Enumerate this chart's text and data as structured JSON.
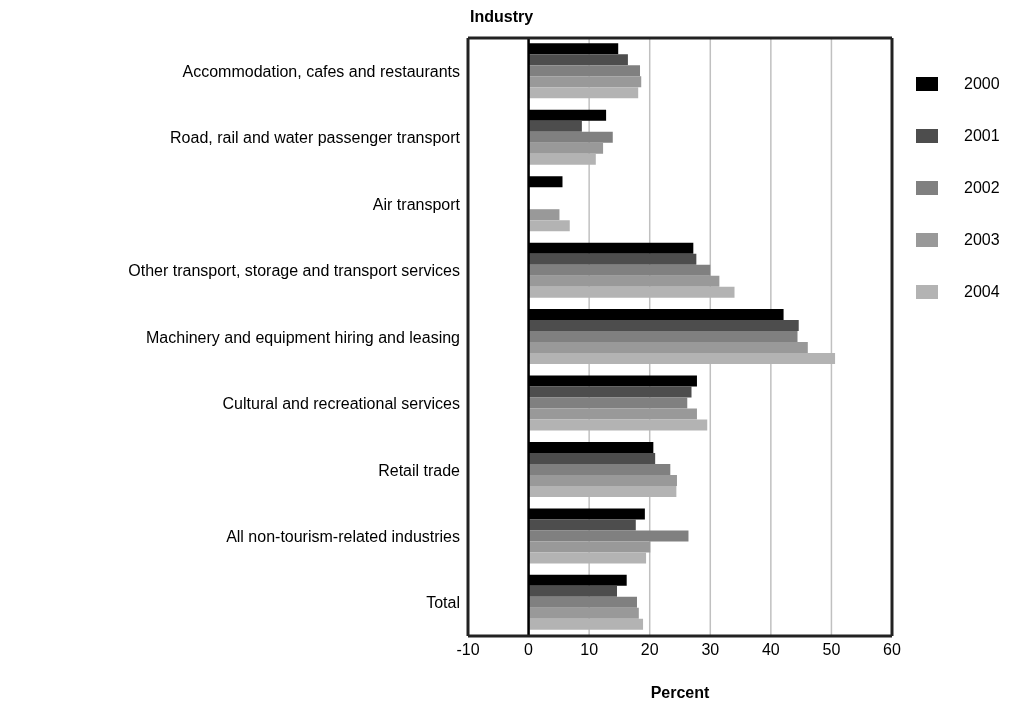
{
  "chart_data": {
    "type": "bar",
    "orientation": "horizontal",
    "title": "Industry",
    "xlabel": "Percent",
    "categories": [
      "Accommodation, cafes and restaurants",
      "Road, rail and water passenger transport",
      "Air transport",
      "Other transport, storage and transport services",
      "Machinery and equipment hiring and leasing",
      "Cultural and recreational services",
      "Retail trade",
      "All non-tourism-related industries",
      "Total"
    ],
    "series": [
      {
        "name": "2000",
        "color": "#000000",
        "values": [
          14.8,
          12.8,
          5.6,
          27.2,
          42.1,
          27.8,
          20.6,
          19.2,
          16.2
        ]
      },
      {
        "name": "2001",
        "color": "#4d4d4d",
        "values": [
          16.4,
          8.8,
          null,
          27.7,
          44.6,
          26.9,
          20.9,
          17.7,
          14.6
        ]
      },
      {
        "name": "2002",
        "color": "#808080",
        "values": [
          18.4,
          13.9,
          null,
          30.0,
          44.4,
          26.2,
          23.4,
          26.4,
          17.9
        ]
      },
      {
        "name": "2003",
        "color": "#999999",
        "values": [
          18.6,
          12.3,
          5.1,
          31.5,
          46.1,
          27.8,
          24.5,
          20.1,
          18.2
        ]
      },
      {
        "name": "2004",
        "color": "#b3b3b3",
        "values": [
          18.1,
          11.1,
          6.8,
          34.0,
          50.6,
          29.5,
          24.4,
          19.4,
          18.9
        ]
      }
    ],
    "xlim": [
      -10,
      60
    ],
    "xticks": [
      -10,
      0,
      10,
      20,
      30,
      40,
      50,
      60
    ],
    "ref_lines": [
      {
        "axis": "x",
        "value": 0,
        "color": "#000000"
      }
    ],
    "grid": "x",
    "legend": "right"
  }
}
